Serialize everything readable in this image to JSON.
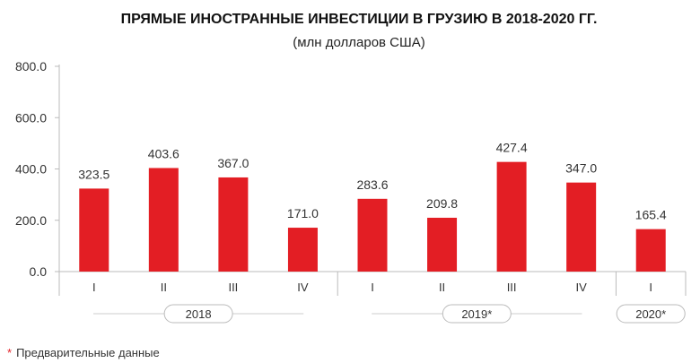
{
  "chart_data": {
    "type": "bar",
    "title": "ПРЯМЫЕ ИНОСТРАННЫЕ ИНВЕСТИЦИИ В ГРУЗИЮ В 2018-2020 ГГ.",
    "subtitle": "(млн долларов США)",
    "categories": [
      "I",
      "II",
      "III",
      "IV",
      "I",
      "II",
      "III",
      "IV",
      "I"
    ],
    "values": [
      323.5,
      403.6,
      367.0,
      171.0,
      283.6,
      209.8,
      427.4,
      347.0,
      165.4
    ],
    "value_labels": [
      "323.5",
      "403.6",
      "367.0",
      "171.0",
      "283.6",
      "209.8",
      "427.4",
      "347.0",
      "165.4"
    ],
    "groups": [
      {
        "label": "2018",
        "start": 0,
        "count": 4
      },
      {
        "label": "2019*",
        "start": 4,
        "count": 4
      },
      {
        "label": "2020*",
        "start": 8,
        "count": 1
      }
    ],
    "ylim": [
      0,
      800
    ],
    "yticks": [
      0,
      200,
      400,
      600,
      800
    ],
    "ytick_labels": [
      "0.0",
      "200.0",
      "400.0",
      "600.0",
      "800.0"
    ],
    "bar_color": "#e31e24",
    "grid": false
  },
  "footnote": {
    "star": "*",
    "text": "Предварительные данные"
  }
}
